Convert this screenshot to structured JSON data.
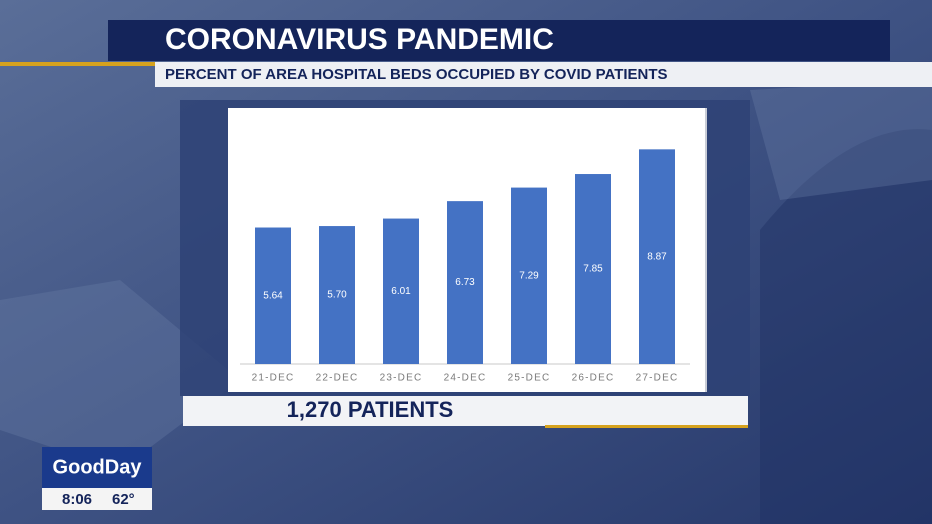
{
  "chart_data": {
    "type": "bar",
    "title": "CORONAVIRUS PANDEMIC",
    "subtitle": "PERCENT OF AREA HOSPITAL BEDS OCCUPIED BY COVID PATIENTS",
    "categories": [
      "21-DEC",
      "22-DEC",
      "23-DEC",
      "24-DEC",
      "25-DEC",
      "26-DEC",
      "27-DEC"
    ],
    "values": [
      5.64,
      5.7,
      6.01,
      6.73,
      7.29,
      7.85,
      8.87
    ],
    "value_labels": [
      "5.64",
      "5.70",
      "6.01",
      "6.73",
      "7.29",
      "7.85",
      "8.87"
    ],
    "color": "#4472c4",
    "ylim": [
      0,
      10
    ],
    "annotation": "1,270 PATIENTS"
  },
  "ticker": {
    "logo": "GoodDay",
    "time": "8:06",
    "temperature": "62°"
  }
}
